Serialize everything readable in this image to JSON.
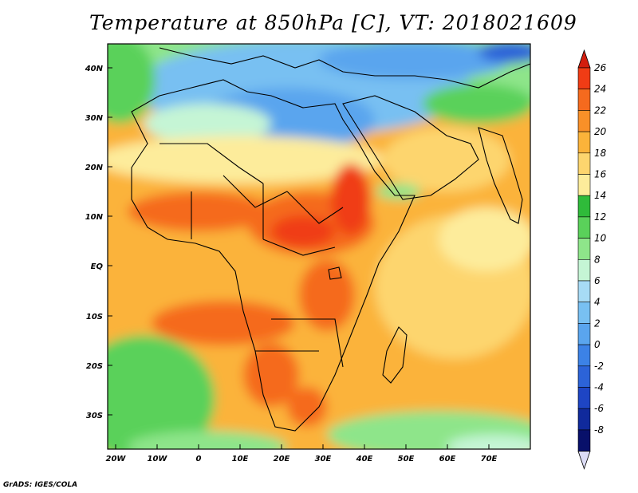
{
  "title": "Temperature at 850hPa [C], VT: 2018021609",
  "credit": "GrADS: IGES/COLA",
  "axes": {
    "lat_labels": [
      "40N",
      "30N",
      "20N",
      "10N",
      "EQ",
      "10S",
      "20S",
      "30S"
    ],
    "lon_labels": [
      "20W",
      "10W",
      "0",
      "10E",
      "20E",
      "30E",
      "40E",
      "50E",
      "60E",
      "70E"
    ]
  },
  "colorbar": {
    "labels": [
      "26",
      "24",
      "22",
      "20",
      "18",
      "16",
      "14",
      "12",
      "10",
      "8",
      "6",
      "4",
      "2",
      "0",
      "-2",
      "-4",
      "-6",
      "-8"
    ],
    "colors": [
      "#f03c15",
      "#f56a1e",
      "#f99028",
      "#fbb33a",
      "#fdd56e",
      "#fdec9b",
      "#2fbb3a",
      "#5ad15a",
      "#8ee58a",
      "#c5f5d5",
      "#a7dbf5",
      "#78c0f2",
      "#5aa5ee",
      "#3c82e6",
      "#2c63d8",
      "#1e45c4",
      "#102a9c",
      "#08106a"
    ],
    "top_arrow_color": "#d21e0e",
    "bottom_arrow_color": "#dcdcf5"
  }
}
